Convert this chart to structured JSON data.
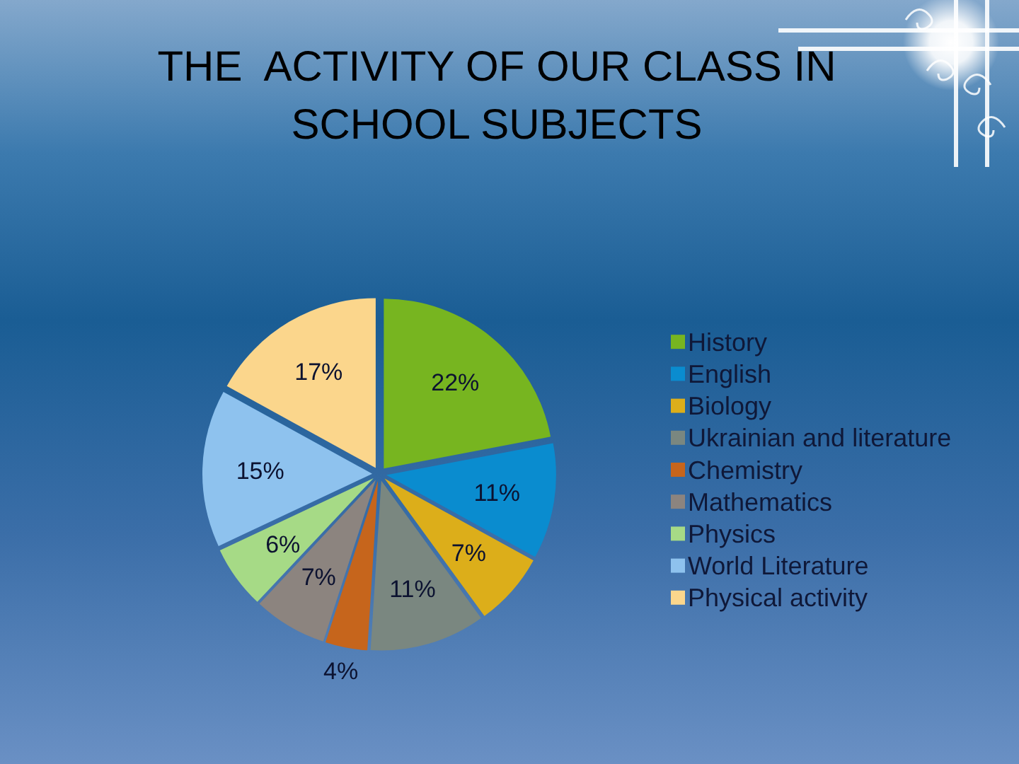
{
  "chart_data": {
    "type": "pie",
    "title": "THE  ACTIVITY OF OUR CLASS IN SCHOOL SUBJECTS",
    "categories": [
      "History",
      "English",
      "Biology",
      "Ukrainian and literature",
      "Chemistry",
      "Mathematics",
      "Physics",
      "World Literature",
      "Physical activity"
    ],
    "values": [
      22,
      11,
      7,
      11,
      4,
      7,
      6,
      15,
      17
    ],
    "value_labels": [
      "22%",
      "11%",
      "7%",
      "11%",
      "4%",
      "7%",
      "6%",
      "15%",
      "17%"
    ],
    "colors": [
      "#77b520",
      "#0a8ccf",
      "#dcae1a",
      "#7a8780",
      "#c6651c",
      "#8c847f",
      "#a6da86",
      "#8ec2ee",
      "#fbd68c"
    ],
    "legend": "right"
  }
}
